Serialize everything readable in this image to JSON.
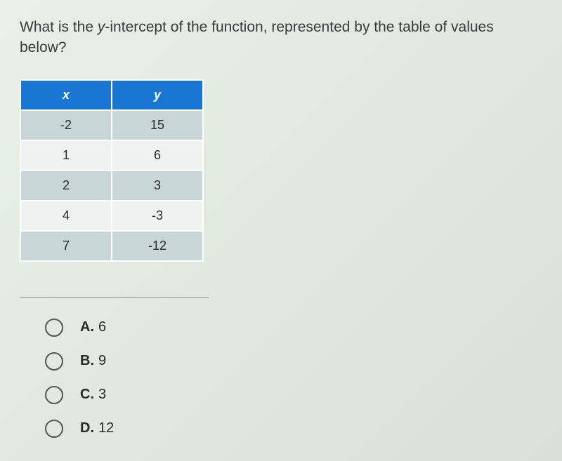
{
  "question": {
    "text_before_y": "What is the ",
    "y_char": "y",
    "text_after_y": "-intercept of the function, represented by the table of values below?"
  },
  "table": {
    "headers": {
      "x": "x",
      "y": "y"
    },
    "header_bg": "#1976d2",
    "shaded_bg": "#c8d6d8",
    "plain_bg": "#f0f2f2",
    "rows": [
      {
        "x": "-2",
        "y": "15",
        "shaded": true
      },
      {
        "x": "1",
        "y": "6",
        "shaded": false
      },
      {
        "x": "2",
        "y": "3",
        "shaded": true
      },
      {
        "x": "4",
        "y": "-3",
        "shaded": false
      },
      {
        "x": "7",
        "y": "-12",
        "shaded": true
      }
    ]
  },
  "choices": [
    {
      "letter": "A.",
      "value": "6"
    },
    {
      "letter": "B.",
      "value": "9"
    },
    {
      "letter": "C.",
      "value": "3"
    },
    {
      "letter": "D.",
      "value": "12"
    }
  ]
}
